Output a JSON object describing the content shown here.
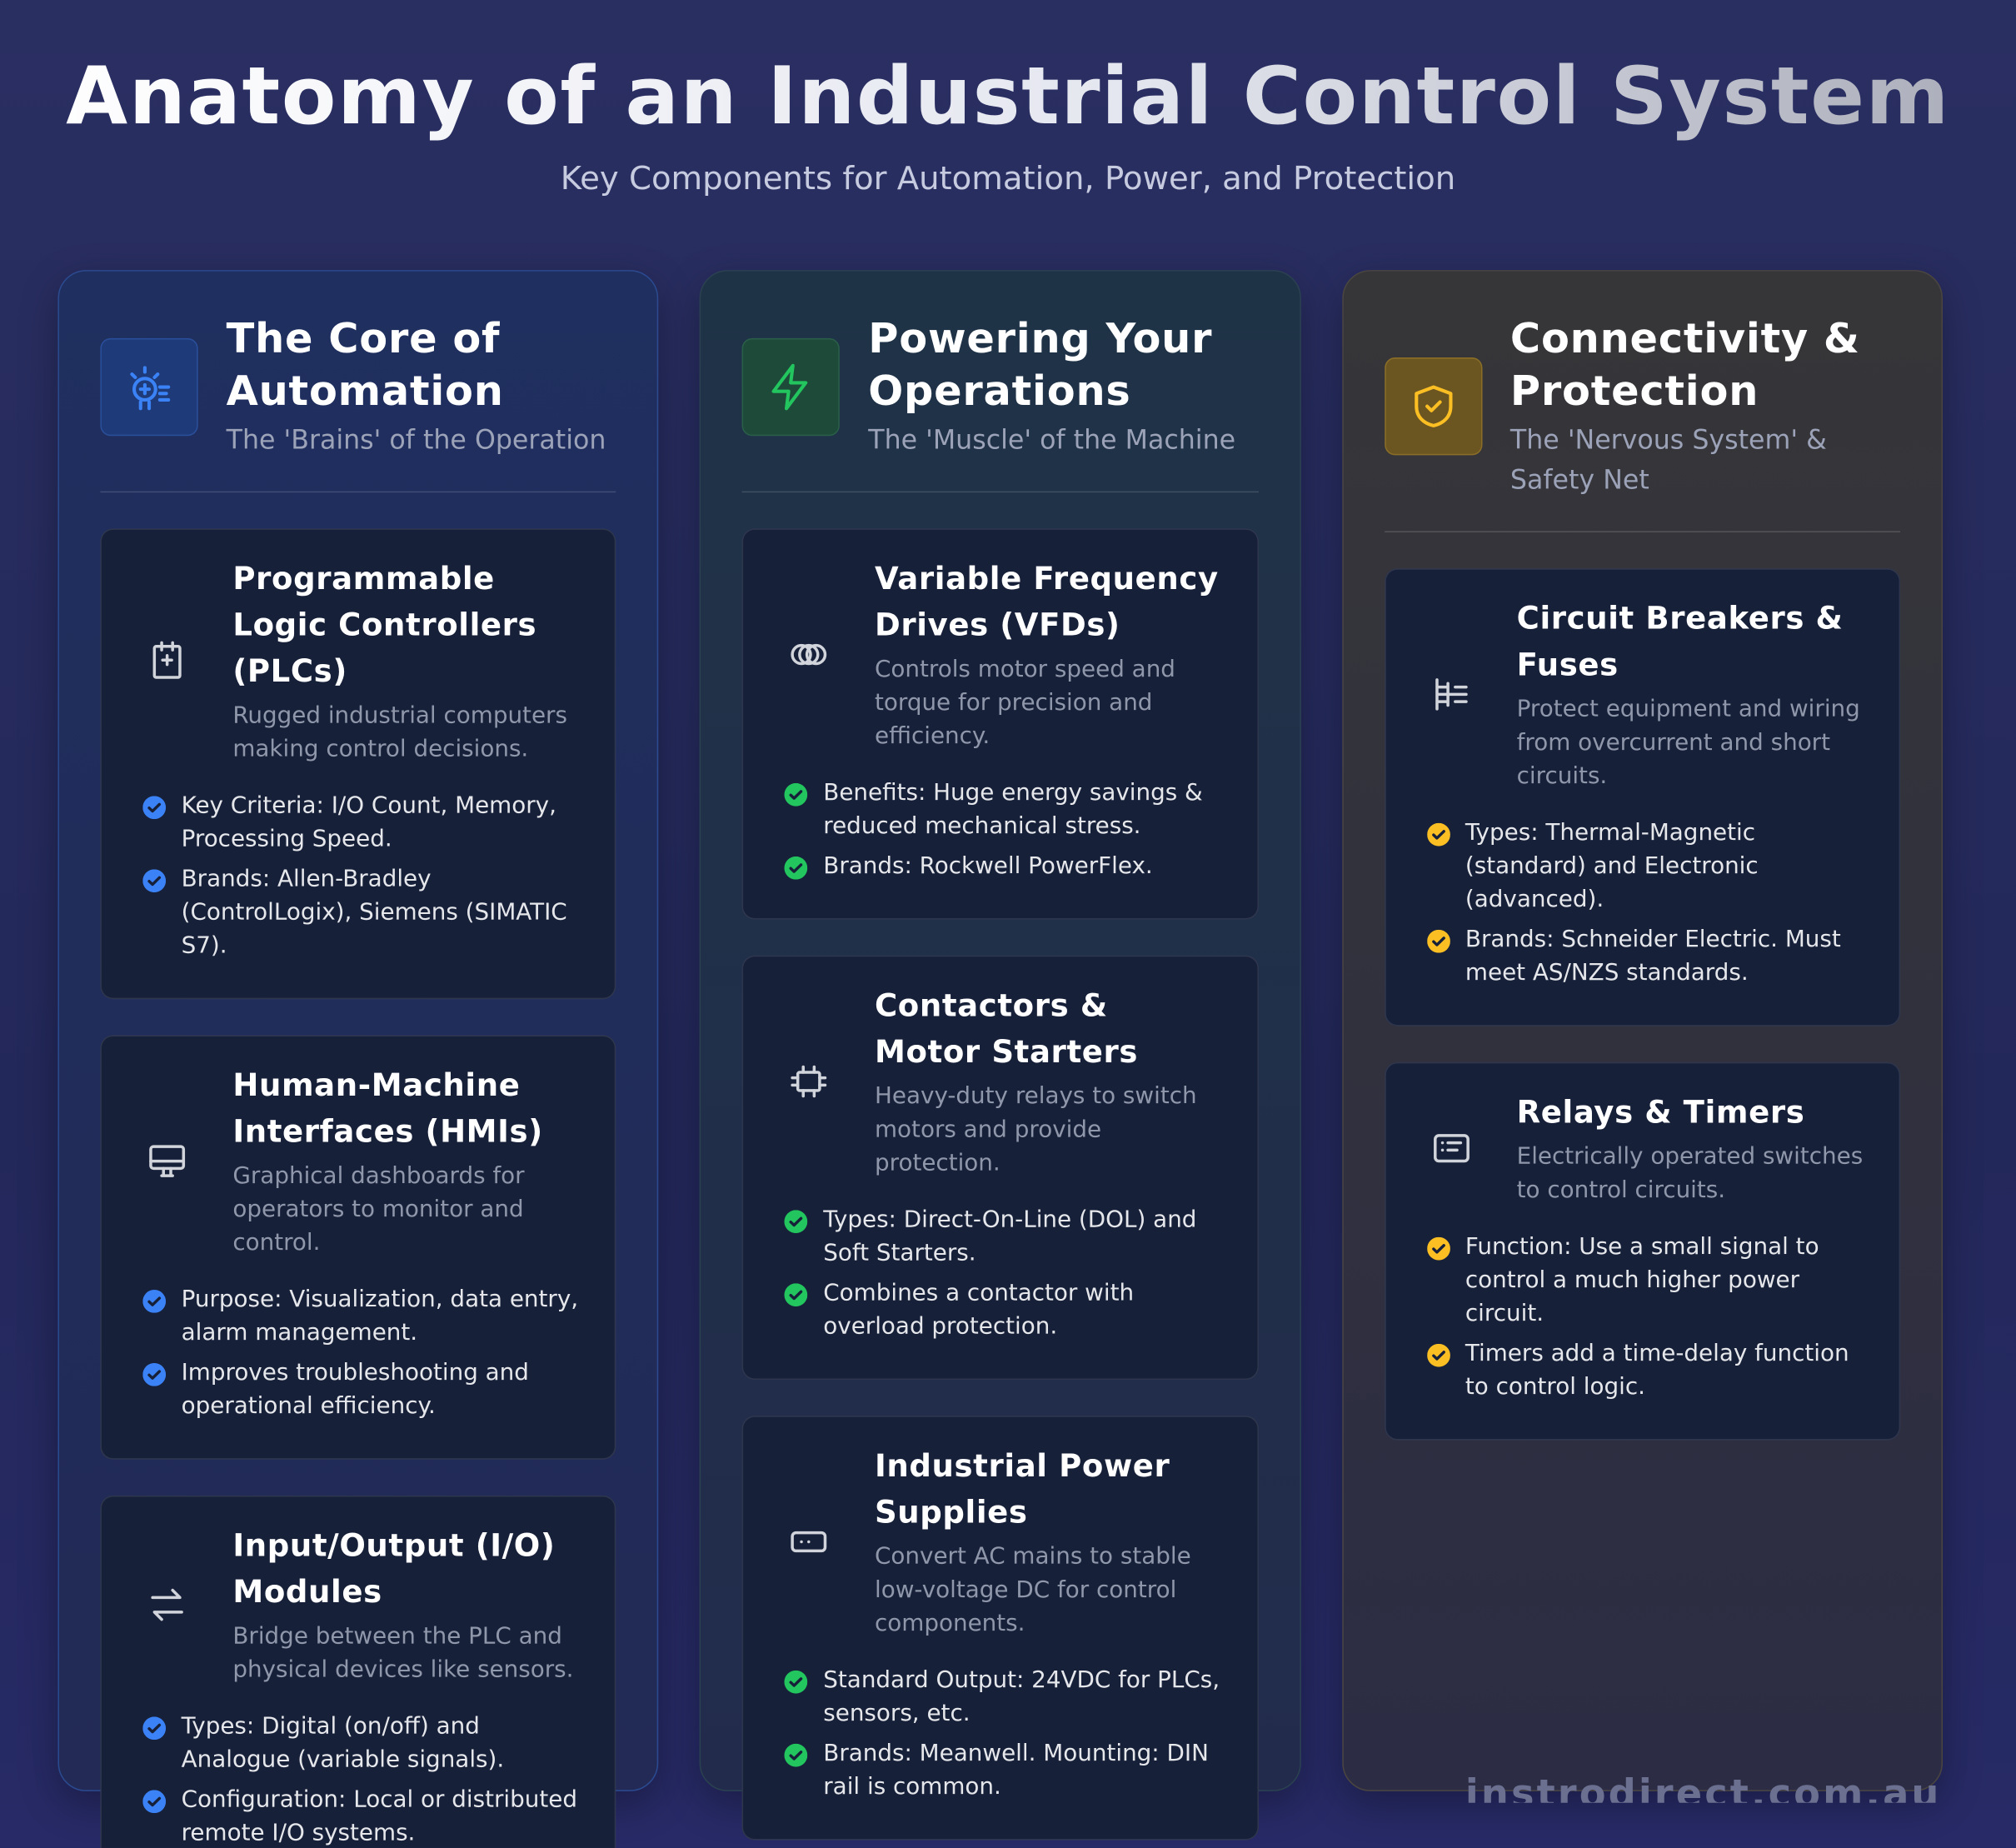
{
  "header": {
    "title": "Anatomy of an Industrial Control System",
    "subtitle": "Key Components for Automation, Power, and Protection"
  },
  "columns": [
    {
      "title": "The Core of Automation",
      "subtitle": "The 'Brains' of the Operation",
      "cards": [
        {
          "title": "Programmable Logic Controllers (PLCs)",
          "description": "Rugged industrial computers making control decisions.",
          "points": [
            "Key Criteria: I/O Count, Memory, Processing Speed.",
            "Brands: Allen-Bradley (ControlLogix), Siemens (SIMATIC S7)."
          ]
        },
        {
          "title": "Human-Machine Interfaces (HMIs)",
          "description": "Graphical dashboards for operators to monitor and control.",
          "points": [
            "Purpose: Visualization, data entry, alarm management.",
            "Improves troubleshooting and operational efficiency."
          ]
        },
        {
          "title": "Input/Output (I/O) Modules",
          "description": "Bridge between the PLC and physical devices like sensors.",
          "points": [
            "Types: Digital (on/off) and Analogue (variable signals).",
            "Configuration: Local or distributed remote I/O systems."
          ]
        }
      ]
    },
    {
      "title": "Powering Your Operations",
      "subtitle": "The 'Muscle' of the Machine",
      "cards": [
        {
          "title": "Variable Frequency Drives (VFDs)",
          "description": "Controls motor speed and torque for precision and efficiency.",
          "points": [
            "Benefits: Huge energy savings & reduced mechanical stress.",
            "Brands: Rockwell PowerFlex."
          ]
        },
        {
          "title": "Contactors & Motor Starters",
          "description": "Heavy-duty relays to switch motors and provide protection.",
          "points": [
            "Types: Direct-On-Line (DOL) and Soft Starters.",
            "Combines a contactor with overload protection."
          ]
        },
        {
          "title": "Industrial Power Supplies",
          "description": "Convert AC mains to stable low-voltage DC for control components.",
          "points": [
            "Standard Output: 24VDC for PLCs, sensors, etc.",
            "Brands: Meanwell. Mounting: DIN rail is common."
          ]
        }
      ]
    },
    {
      "title": "Connectivity & Protection",
      "subtitle": "The 'Nervous System' & Safety Net",
      "cards": [
        {
          "title": "Circuit Breakers & Fuses",
          "description": "Protect equipment and wiring from overcurrent and short circuits.",
          "points": [
            "Types: Thermal-Magnetic (standard) and Electronic (advanced).",
            "Brands: Schneider Electric. Must meet AS/NZS standards."
          ]
        },
        {
          "title": "Relays & Timers",
          "description": "Electrically operated switches to control circuits.",
          "points": [
            "Function: Use a small signal to control a much higher power circuit.",
            "Timers add a time-delay function to control logic."
          ]
        }
      ]
    }
  ],
  "footer": {
    "watermark": "instrodirect.com.au"
  }
}
